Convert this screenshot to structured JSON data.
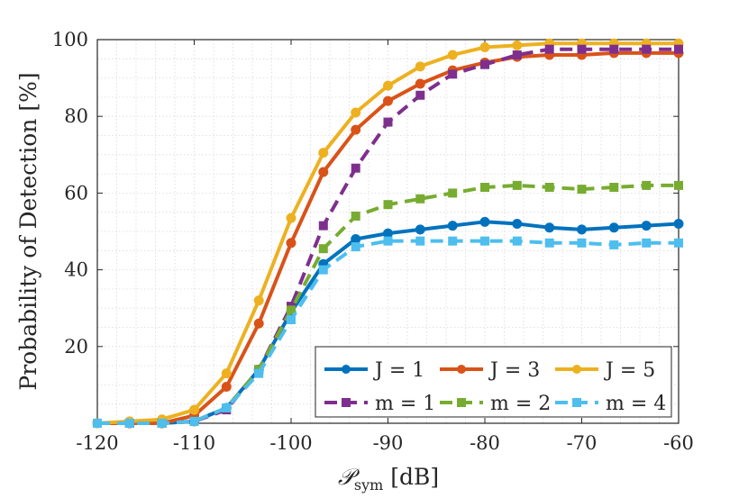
{
  "chart_data": {
    "type": "line",
    "title": "",
    "xlabel": "P_sym [dB]",
    "xlabel_parts": {
      "symbol": "𝒫",
      "subscript": "sym",
      "unit": "[dB]"
    },
    "ylabel": "Probability of Detection [%]",
    "xlim": [
      -120,
      -60
    ],
    "ylim": [
      0,
      100
    ],
    "xticks": [
      -120,
      -110,
      -100,
      -90,
      -80,
      -70,
      -60
    ],
    "xtick_labels": [
      "-120",
      "-110",
      "-100",
      "-90",
      "-80",
      "-70",
      "-60"
    ],
    "yticks": [
      20,
      40,
      60,
      80,
      100
    ],
    "ytick_labels": [
      "20",
      "40",
      "60",
      "80",
      "100"
    ],
    "grid": "minor-dotted",
    "legend_position": "bottom-right",
    "x": [
      -120,
      -116.67,
      -113.33,
      -110,
      -106.67,
      -103.33,
      -100,
      -96.67,
      -93.33,
      -90,
      -86.67,
      -83.33,
      -80,
      -76.67,
      -73.33,
      -70,
      -66.67,
      -63.33,
      -60
    ],
    "series": [
      {
        "name": "J = 1",
        "marker": "circle",
        "dash": "solid",
        "color": "#0072BD",
        "values": [
          0,
          0,
          0,
          0.5,
          4,
          14,
          29,
          41.5,
          48,
          49.5,
          50.5,
          51.5,
          52.5,
          52,
          51,
          50.5,
          51,
          51.5,
          52
        ]
      },
      {
        "name": "J = 3",
        "marker": "circle",
        "dash": "solid",
        "color": "#D95319",
        "values": [
          0,
          0,
          0,
          2,
          9.5,
          26,
          47,
          65.5,
          76.5,
          84,
          88.5,
          92,
          94,
          95.5,
          96,
          96,
          96.5,
          96.5,
          96.5
        ]
      },
      {
        "name": "J = 5",
        "marker": "circle",
        "dash": "solid",
        "color": "#EDB120",
        "values": [
          0,
          0.5,
          1,
          3.5,
          13,
          32,
          53.5,
          70.5,
          81,
          88,
          93,
          96,
          98,
          98.5,
          99,
          99,
          99,
          99,
          99
        ]
      },
      {
        "name": "m = 1",
        "marker": "square",
        "dash": "dashed",
        "color": "#7E2F8E",
        "values": [
          0,
          0,
          0,
          0.5,
          3.5,
          14,
          30.5,
          51.5,
          66.5,
          78.5,
          85.5,
          91,
          93.5,
          96,
          97.5,
          97.5,
          97.5,
          97.5,
          97.5
        ]
      },
      {
        "name": "m = 2",
        "marker": "square",
        "dash": "dashed",
        "color": "#77AC30",
        "values": [
          0,
          0,
          0,
          0.5,
          4,
          14,
          29.5,
          45.5,
          54,
          57,
          58.5,
          60,
          61.5,
          62,
          61.5,
          61,
          61.5,
          62,
          62
        ]
      },
      {
        "name": "m = 4",
        "marker": "square",
        "dash": "dashed",
        "color": "#4DBEEE",
        "values": [
          0,
          0,
          0,
          0.5,
          4,
          13,
          27,
          40,
          46,
          47.5,
          47.5,
          47.5,
          47.5,
          47.5,
          47,
          47,
          46.5,
          47,
          47
        ]
      }
    ]
  }
}
